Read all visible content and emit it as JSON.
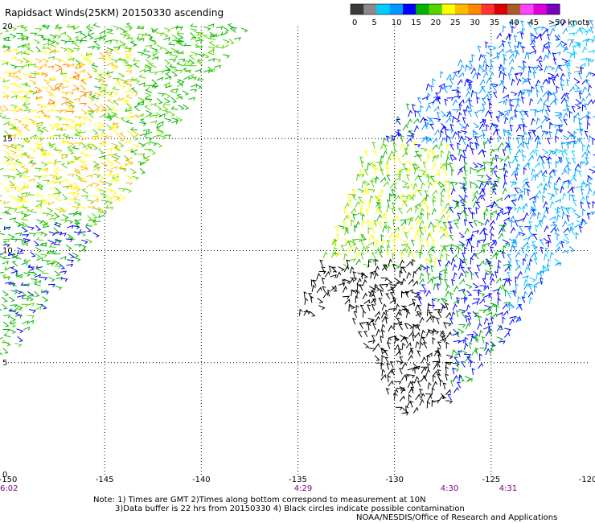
{
  "title": "Rapidsact Winds(25KM) 20150330 ascending",
  "colorbar": {
    "colors": [
      "#3a3a3a",
      "#8a8a8a",
      "#00ccff",
      "#0099ff",
      "#0000ff",
      "#00b400",
      "#55d400",
      "#ffff00",
      "#ffbb00",
      "#ff8800",
      "#ff3333",
      "#dd0000",
      "#aa5a2a",
      "#ff44ff",
      "#dd00dd",
      "#7700bb"
    ],
    "labels": [
      "0",
      "5",
      "10",
      "15",
      "20",
      "25",
      "30",
      "35",
      "40",
      "45",
      ">50 knots"
    ]
  },
  "axes": {
    "x_ticks": [
      "-150",
      "-145",
      "-140",
      "-135",
      "-130",
      "-125",
      "-120"
    ],
    "y_ticks": [
      "20",
      "15",
      "10",
      "5",
      "0"
    ],
    "times": [
      "6:02",
      "4:29",
      "4:30",
      "4:31"
    ]
  },
  "notes": {
    "line1": "Note: 1) Times are GMT 2)Times along bottom correspond to measurement at 10N",
    "line2": "3)Data buffer is 22 hrs from 20150330 4) Black circles indicate possible contamination",
    "credit": "NOAA/NESDIS/Office of Research and Applications"
  },
  "map": {
    "lon_range": [
      -150,
      -120
    ],
    "lat_range": [
      0,
      20
    ],
    "grid_lons": [
      -145,
      -140,
      -135,
      -130,
      -125
    ],
    "grid_lats": [
      5,
      10,
      15
    ],
    "units": "knots"
  }
}
